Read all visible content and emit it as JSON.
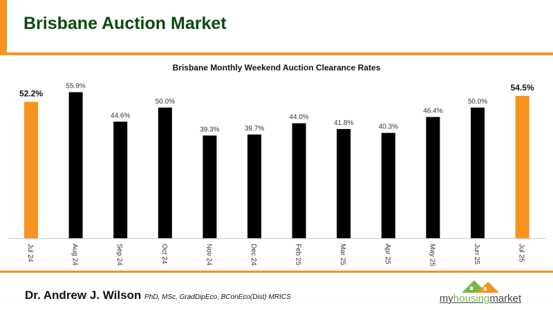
{
  "header": {
    "title": "Brisbane Auction Market"
  },
  "colors": {
    "accent": "#f7931e",
    "bar": "#000000",
    "title": "#0d4a0d",
    "logo_green": "#7ab648"
  },
  "chart_data": {
    "type": "bar",
    "title": "Brisbane Monthly Weekend Auction Clearance Rates",
    "categories": [
      "Jul 24",
      "Aug 24",
      "Sep 24",
      "Oct 24",
      "Nov 24",
      "Dec 24",
      "Feb 25",
      "Mar 25",
      "Apr 25",
      "May 25",
      "Jun 25",
      "Jul 25"
    ],
    "values": [
      52.2,
      55.9,
      44.6,
      50.0,
      39.3,
      39.7,
      44.0,
      41.8,
      40.3,
      46.4,
      50.0,
      54.5
    ],
    "data_labels": [
      "52.2%",
      "55.9%",
      "44.6%",
      "50.0%",
      "39.3%",
      "39.7%",
      "44.0%",
      "41.8%",
      "40.3%",
      "46.4%",
      "50.0%",
      "54.5%"
    ],
    "highlighted": [
      0,
      11
    ],
    "xlabel": "",
    "ylabel": "",
    "ylim": [
      0,
      60
    ],
    "grid": false,
    "legend": "none"
  },
  "footer": {
    "author": "Dr. Andrew J. Wilson",
    "credentials": "PhD, MSc, GradDipEco, BConEco(Dist) MRICS",
    "logo_text_1": "my",
    "logo_text_2": "housing",
    "logo_text_3": "market"
  }
}
